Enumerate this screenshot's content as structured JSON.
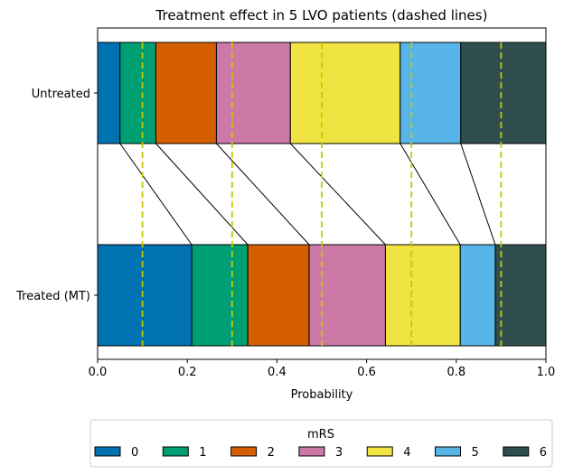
{
  "chart_data": {
    "type": "stacked-horizontal-bar",
    "title": "Treatment effect in 5 LVO patients (dashed lines)",
    "xlabel": "Probability",
    "ylabel": "",
    "xlim": [
      0.0,
      1.0
    ],
    "x_ticks": [
      "0.0",
      "0.2",
      "0.4",
      "0.6",
      "0.8",
      "1.0"
    ],
    "categories": [
      "Untreated",
      "Treated (MT)"
    ],
    "legend": {
      "title": "mRS",
      "placement": "bottom-center",
      "labels": [
        "0",
        "1",
        "2",
        "3",
        "4",
        "5",
        "6"
      ]
    },
    "colors": [
      "#0072b2",
      "#009e73",
      "#d55e00",
      "#cc79a7",
      "#f0e442",
      "#56b4e9",
      "#2f4f4f"
    ],
    "series": [
      {
        "name": "0",
        "values": [
          0.05,
          0.21
        ]
      },
      {
        "name": "1",
        "values": [
          0.08,
          0.125
        ]
      },
      {
        "name": "2",
        "values": [
          0.135,
          0.137
        ]
      },
      {
        "name": "3",
        "values": [
          0.165,
          0.17
        ]
      },
      {
        "name": "4",
        "values": [
          0.245,
          0.167
        ]
      },
      {
        "name": "5",
        "values": [
          0.135,
          0.078
        ]
      },
      {
        "name": "6",
        "values": [
          0.19,
          0.113
        ]
      }
    ],
    "patient_lines": [
      0.1,
      0.3,
      0.5,
      0.7,
      0.9
    ],
    "patient_line_color": "#c8c800",
    "grid": false
  }
}
